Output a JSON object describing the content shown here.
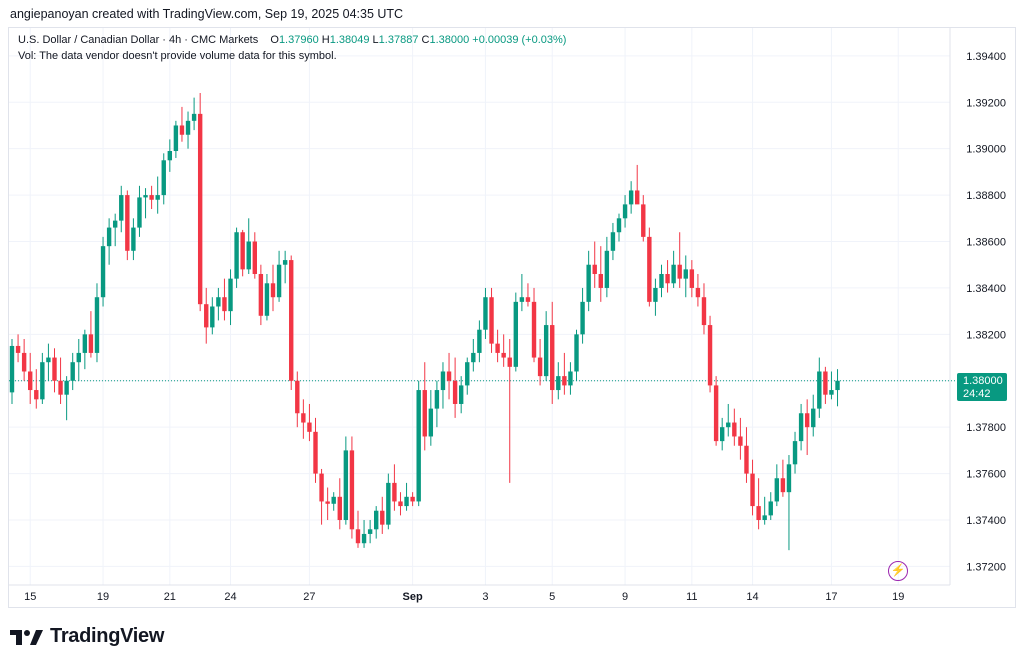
{
  "header": {
    "author_line": "angiepanoyan created with TradingView.com, Sep 19, 2025 04:35 UTC"
  },
  "legend": {
    "symbol": "U.S. Dollar / Canadian Dollar · 4h · CMC Markets",
    "o_label": "O",
    "o_value": "1.37960",
    "h_label": "H",
    "h_value": "1.38049",
    "l_label": "L",
    "l_value": "1.37887",
    "c_label": "C",
    "c_value": "1.38000",
    "change": "+0.00039 (+0.03%)",
    "vol_note": "Vol: The data vendor doesn't provide volume data for this symbol."
  },
  "price_tag": {
    "price": "1.38000",
    "countdown": "24:42"
  },
  "brand": {
    "name": "TradingView"
  },
  "colors": {
    "up": "#089981",
    "down": "#f23645",
    "grid": "#f0f3fa",
    "axis_text": "#131722",
    "last_line": "#089981"
  },
  "chart_data": {
    "type": "candlestick",
    "title": "U.S. Dollar / Canadian Dollar · 4h · CMC Markets",
    "xlabel": "",
    "ylabel": "",
    "ylim": [
      1.3712,
      1.3952
    ],
    "y_ticks": [
      "1.39400",
      "1.39200",
      "1.39000",
      "1.38800",
      "1.38600",
      "1.38400",
      "1.38200",
      "1.38000",
      "1.37800",
      "1.37600",
      "1.37400",
      "1.37200"
    ],
    "x_ticks": [
      {
        "label": "15",
        "index": 3
      },
      {
        "label": "19",
        "index": 15
      },
      {
        "label": "21",
        "index": 26
      },
      {
        "label": "24",
        "index": 36
      },
      {
        "label": "27",
        "index": 49
      },
      {
        "label": "Sep",
        "index": 66
      },
      {
        "label": "3",
        "index": 78
      },
      {
        "label": "5",
        "index": 89
      },
      {
        "label": "9",
        "index": 101
      },
      {
        "label": "11",
        "index": 112
      },
      {
        "label": "14",
        "index": 122
      },
      {
        "label": "17",
        "index": 135
      },
      {
        "label": "19",
        "index": 146
      }
    ],
    "grid": true,
    "last_price": 1.38,
    "candles": [
      [
        1.3795,
        1.3818,
        1.379,
        1.3815
      ],
      [
        1.3815,
        1.382,
        1.3808,
        1.3812
      ],
      [
        1.3812,
        1.3818,
        1.38,
        1.3804
      ],
      [
        1.3804,
        1.3812,
        1.379,
        1.3796
      ],
      [
        1.3796,
        1.3805,
        1.3788,
        1.3792
      ],
      [
        1.3792,
        1.3812,
        1.379,
        1.3808
      ],
      [
        1.3808,
        1.3816,
        1.38,
        1.381
      ],
      [
        1.381,
        1.3814,
        1.3795,
        1.38
      ],
      [
        1.38,
        1.381,
        1.379,
        1.3794
      ],
      [
        1.3794,
        1.3802,
        1.3783,
        1.38
      ],
      [
        1.38,
        1.3812,
        1.3796,
        1.3808
      ],
      [
        1.3808,
        1.3818,
        1.38,
        1.3812
      ],
      [
        1.3812,
        1.3822,
        1.3805,
        1.382
      ],
      [
        1.382,
        1.383,
        1.381,
        1.3812
      ],
      [
        1.3812,
        1.3842,
        1.3808,
        1.3836
      ],
      [
        1.3836,
        1.3862,
        1.3832,
        1.3858
      ],
      [
        1.3858,
        1.387,
        1.385,
        1.3866
      ],
      [
        1.3866,
        1.3872,
        1.3858,
        1.3869
      ],
      [
        1.3869,
        1.3884,
        1.3864,
        1.388
      ],
      [
        1.388,
        1.3882,
        1.3852,
        1.3856
      ],
      [
        1.3856,
        1.387,
        1.3852,
        1.3866
      ],
      [
        1.3866,
        1.3884,
        1.3862,
        1.3879
      ],
      [
        1.3879,
        1.3883,
        1.387,
        1.388
      ],
      [
        1.388,
        1.3884,
        1.3874,
        1.3878
      ],
      [
        1.3878,
        1.3888,
        1.3872,
        1.388
      ],
      [
        1.388,
        1.3898,
        1.3876,
        1.3895
      ],
      [
        1.3895,
        1.3904,
        1.389,
        1.3899
      ],
      [
        1.3899,
        1.3912,
        1.3896,
        1.391
      ],
      [
        1.391,
        1.3918,
        1.3903,
        1.3906
      ],
      [
        1.3906,
        1.3916,
        1.39,
        1.3912
      ],
      [
        1.3912,
        1.3922,
        1.3908,
        1.3915
      ],
      [
        1.3915,
        1.3924,
        1.383,
        1.3833
      ],
      [
        1.3833,
        1.384,
        1.3816,
        1.3823
      ],
      [
        1.3823,
        1.3836,
        1.382,
        1.3832
      ],
      [
        1.3832,
        1.384,
        1.3826,
        1.3836
      ],
      [
        1.3836,
        1.3844,
        1.3826,
        1.383
      ],
      [
        1.383,
        1.3848,
        1.3824,
        1.3844
      ],
      [
        1.3844,
        1.3866,
        1.384,
        1.3864
      ],
      [
        1.3864,
        1.3865,
        1.3845,
        1.3848
      ],
      [
        1.3848,
        1.387,
        1.3846,
        1.386
      ],
      [
        1.386,
        1.3864,
        1.3844,
        1.3846
      ],
      [
        1.3846,
        1.385,
        1.3824,
        1.3828
      ],
      [
        1.3828,
        1.3846,
        1.3826,
        1.3842
      ],
      [
        1.3842,
        1.385,
        1.383,
        1.3836
      ],
      [
        1.3836,
        1.3856,
        1.3834,
        1.385
      ],
      [
        1.385,
        1.3856,
        1.3842,
        1.3852
      ],
      [
        1.3852,
        1.3854,
        1.3796,
        1.38
      ],
      [
        1.38,
        1.3804,
        1.378,
        1.3786
      ],
      [
        1.3786,
        1.3792,
        1.3775,
        1.3782
      ],
      [
        1.3782,
        1.379,
        1.3774,
        1.3778
      ],
      [
        1.3778,
        1.3784,
        1.3756,
        1.376
      ],
      [
        1.376,
        1.3762,
        1.3738,
        1.3748
      ],
      [
        1.3748,
        1.3754,
        1.374,
        1.3747
      ],
      [
        1.3747,
        1.3752,
        1.3744,
        1.375
      ],
      [
        1.375,
        1.3758,
        1.3736,
        1.374
      ],
      [
        1.374,
        1.3776,
        1.3738,
        1.377
      ],
      [
        1.377,
        1.3776,
        1.3732,
        1.3736
      ],
      [
        1.3736,
        1.3744,
        1.3728,
        1.373
      ],
      [
        1.373,
        1.374,
        1.3728,
        1.3734
      ],
      [
        1.3734,
        1.374,
        1.373,
        1.3736
      ],
      [
        1.3736,
        1.3746,
        1.3732,
        1.3744
      ],
      [
        1.3744,
        1.375,
        1.3734,
        1.3738
      ],
      [
        1.3738,
        1.376,
        1.3736,
        1.3756
      ],
      [
        1.3756,
        1.3764,
        1.3744,
        1.3748
      ],
      [
        1.3748,
        1.3752,
        1.3742,
        1.3746
      ],
      [
        1.3746,
        1.3756,
        1.3744,
        1.375
      ],
      [
        1.375,
        1.3752,
        1.3746,
        1.3748
      ],
      [
        1.3748,
        1.38,
        1.3746,
        1.3796
      ],
      [
        1.3796,
        1.3808,
        1.377,
        1.3776
      ],
      [
        1.3776,
        1.3796,
        1.3772,
        1.3788
      ],
      [
        1.3788,
        1.38,
        1.378,
        1.3796
      ],
      [
        1.3796,
        1.3808,
        1.3788,
        1.3804
      ],
      [
        1.3804,
        1.3812,
        1.3792,
        1.38
      ],
      [
        1.38,
        1.381,
        1.3784,
        1.379
      ],
      [
        1.379,
        1.3802,
        1.3786,
        1.3798
      ],
      [
        1.3798,
        1.381,
        1.3794,
        1.3808
      ],
      [
        1.3808,
        1.3818,
        1.3804,
        1.3812
      ],
      [
        1.3812,
        1.3826,
        1.3808,
        1.3822
      ],
      [
        1.3822,
        1.384,
        1.3818,
        1.3836
      ],
      [
        1.3836,
        1.384,
        1.3812,
        1.3816
      ],
      [
        1.3816,
        1.3822,
        1.3808,
        1.3812
      ],
      [
        1.3812,
        1.382,
        1.3806,
        1.381
      ],
      [
        1.381,
        1.3818,
        1.3756,
        1.3806
      ],
      [
        1.3806,
        1.3838,
        1.3804,
        1.3834
      ],
      [
        1.3834,
        1.3846,
        1.383,
        1.3836
      ],
      [
        1.3836,
        1.3842,
        1.3832,
        1.3834
      ],
      [
        1.3834,
        1.384,
        1.3808,
        1.381
      ],
      [
        1.381,
        1.3818,
        1.3798,
        1.3802
      ],
      [
        1.3802,
        1.383,
        1.38,
        1.3824
      ],
      [
        1.3824,
        1.3834,
        1.379,
        1.3796
      ],
      [
        1.3796,
        1.3808,
        1.3792,
        1.3802
      ],
      [
        1.3802,
        1.3812,
        1.3794,
        1.3798
      ],
      [
        1.3798,
        1.3808,
        1.3794,
        1.3804
      ],
      [
        1.3804,
        1.3822,
        1.38,
        1.382
      ],
      [
        1.382,
        1.384,
        1.3816,
        1.3834
      ],
      [
        1.3834,
        1.3856,
        1.383,
        1.385
      ],
      [
        1.385,
        1.386,
        1.384,
        1.3846
      ],
      [
        1.3846,
        1.3858,
        1.3834,
        1.384
      ],
      [
        1.384,
        1.3862,
        1.3836,
        1.3856
      ],
      [
        1.3856,
        1.3868,
        1.3852,
        1.3864
      ],
      [
        1.3864,
        1.3872,
        1.386,
        1.387
      ],
      [
        1.387,
        1.388,
        1.3866,
        1.3876
      ],
      [
        1.3876,
        1.3886,
        1.3872,
        1.3882
      ],
      [
        1.3882,
        1.3893,
        1.3878,
        1.3876
      ],
      [
        1.3876,
        1.388,
        1.386,
        1.3862
      ],
      [
        1.3862,
        1.3866,
        1.3832,
        1.3834
      ],
      [
        1.3834,
        1.3844,
        1.3828,
        1.384
      ],
      [
        1.384,
        1.385,
        1.3836,
        1.3846
      ],
      [
        1.3846,
        1.3852,
        1.3838,
        1.3842
      ],
      [
        1.3842,
        1.3856,
        1.384,
        1.385
      ],
      [
        1.385,
        1.3864,
        1.384,
        1.3844
      ],
      [
        1.3844,
        1.3854,
        1.3836,
        1.3848
      ],
      [
        1.3848,
        1.3852,
        1.3836,
        1.384
      ],
      [
        1.384,
        1.3846,
        1.3832,
        1.3836
      ],
      [
        1.3836,
        1.3842,
        1.382,
        1.3824
      ],
      [
        1.3824,
        1.3828,
        1.3795,
        1.3798
      ],
      [
        1.3798,
        1.3802,
        1.3772,
        1.3774
      ],
      [
        1.3774,
        1.3784,
        1.377,
        1.378
      ],
      [
        1.378,
        1.379,
        1.3776,
        1.3782
      ],
      [
        1.3782,
        1.3788,
        1.3772,
        1.3776
      ],
      [
        1.3776,
        1.3784,
        1.3766,
        1.3772
      ],
      [
        1.3772,
        1.378,
        1.3756,
        1.376
      ],
      [
        1.376,
        1.3766,
        1.3742,
        1.3746
      ],
      [
        1.3746,
        1.3758,
        1.3736,
        1.374
      ],
      [
        1.374,
        1.375,
        1.3738,
        1.3742
      ],
      [
        1.3742,
        1.3752,
        1.374,
        1.3748
      ],
      [
        1.3748,
        1.3764,
        1.3746,
        1.3758
      ],
      [
        1.3758,
        1.3766,
        1.375,
        1.3752
      ],
      [
        1.3752,
        1.3768,
        1.3727,
        1.3764
      ],
      [
        1.3764,
        1.3778,
        1.376,
        1.3774
      ],
      [
        1.3774,
        1.379,
        1.377,
        1.3786
      ],
      [
        1.3786,
        1.3792,
        1.3768,
        1.378
      ],
      [
        1.378,
        1.3794,
        1.3776,
        1.3788
      ],
      [
        1.3788,
        1.381,
        1.3784,
        1.3804
      ],
      [
        1.3804,
        1.3806,
        1.379,
        1.3794
      ],
      [
        1.3794,
        1.3804,
        1.3792,
        1.3796
      ],
      [
        1.3796,
        1.3805,
        1.3789,
        1.38
      ]
    ]
  }
}
